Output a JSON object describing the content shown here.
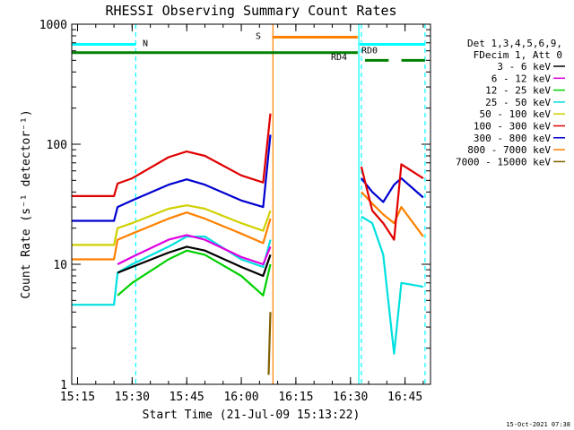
{
  "chart_data": {
    "type": "line",
    "title": "RHESSI Observing Summary Count Rates",
    "xlabel": "Start Time (21-Jul-09 15:13:22)",
    "ylabel": "Count Rate (s⁻¹ detector⁻¹)",
    "yscale": "log",
    "ylim": [
      1,
      1000
    ],
    "xlim_minutes": [
      913.4,
      1012
    ],
    "x_tick_labels": [
      "15:15",
      "15:30",
      "15:45",
      "16:00",
      "16:15",
      "16:30",
      "16:45"
    ],
    "y_tick_labels": [
      "1",
      "10",
      "100",
      "1000"
    ],
    "legend_header": [
      "Det 1,3,4,5,6,9,",
      "FDecim 1, Att 0"
    ],
    "legend_position": "right",
    "footer": "15-Oct-2021 07:38",
    "series": [
      {
        "name": "3 - 6 keV",
        "color": "#000000",
        "seg1": [
          [
            926,
            8.5
          ],
          [
            930,
            9.5
          ],
          [
            940,
            12.5
          ],
          [
            945,
            14
          ],
          [
            950,
            13
          ],
          [
            960,
            9.5
          ],
          [
            966,
            8
          ],
          [
            968,
            12
          ]
        ],
        "seg2": []
      },
      {
        "name": "6 - 12 keV",
        "color": "#e000e0",
        "seg1": [
          [
            926,
            10
          ],
          [
            930,
            11.5
          ],
          [
            940,
            16
          ],
          [
            945,
            17.5
          ],
          [
            950,
            16
          ],
          [
            960,
            11.5
          ],
          [
            966,
            10
          ],
          [
            968,
            14
          ]
        ],
        "seg2": []
      },
      {
        "name": "12 - 25 keV",
        "color": "#00d000",
        "seg1": [
          [
            926,
            5.5
          ],
          [
            930,
            7
          ],
          [
            940,
            11
          ],
          [
            945,
            13
          ],
          [
            950,
            12
          ],
          [
            960,
            8
          ],
          [
            966,
            5.5
          ],
          [
            968,
            10
          ]
        ],
        "seg2": []
      },
      {
        "name": "25 - 50 keV",
        "color": "#00e0e0",
        "seg1": [
          [
            913.5,
            4.6
          ],
          [
            925,
            4.6
          ],
          [
            926,
            8.5
          ],
          [
            930,
            10
          ],
          [
            940,
            14
          ],
          [
            945,
            17
          ],
          [
            950,
            17
          ],
          [
            960,
            11
          ],
          [
            966,
            9.5
          ],
          [
            968,
            16
          ]
        ],
        "seg2": [
          [
            993,
            25
          ],
          [
            996,
            22
          ],
          [
            999,
            12
          ],
          [
            1002,
            1.8
          ],
          [
            1004,
            7
          ],
          [
            1010,
            6.5
          ]
        ]
      },
      {
        "name": "50 - 100 keV",
        "color": "#d0d000",
        "seg1": [
          [
            913.5,
            14.5
          ],
          [
            925,
            14.5
          ],
          [
            926,
            20
          ],
          [
            930,
            22
          ],
          [
            940,
            29
          ],
          [
            945,
            31
          ],
          [
            950,
            29
          ],
          [
            960,
            22
          ],
          [
            966,
            19
          ],
          [
            968,
            28
          ]
        ],
        "seg2": []
      },
      {
        "name": "100 - 300 keV",
        "color": "#e00000",
        "seg1": [
          [
            913.5,
            37
          ],
          [
            925,
            37
          ],
          [
            926,
            47
          ],
          [
            930,
            52
          ],
          [
            940,
            78
          ],
          [
            945,
            87
          ],
          [
            950,
            80
          ],
          [
            960,
            55
          ],
          [
            966,
            48
          ],
          [
            968,
            180
          ]
        ],
        "seg2": [
          [
            993,
            65
          ],
          [
            996,
            28
          ],
          [
            999,
            22
          ],
          [
            1002,
            16
          ],
          [
            1004,
            68
          ],
          [
            1010,
            52
          ]
        ]
      },
      {
        "name": "300 - 800 keV",
        "color": "#0000d0",
        "seg1": [
          [
            913.5,
            23
          ],
          [
            925,
            23
          ],
          [
            926,
            30
          ],
          [
            930,
            34
          ],
          [
            940,
            46
          ],
          [
            945,
            51
          ],
          [
            950,
            46
          ],
          [
            960,
            34
          ],
          [
            966,
            30
          ],
          [
            968,
            120
          ]
        ],
        "seg2": [
          [
            993,
            52
          ],
          [
            996,
            40
          ],
          [
            999,
            33
          ],
          [
            1002,
            46
          ],
          [
            1004,
            52
          ],
          [
            1010,
            36
          ]
        ]
      },
      {
        "name": "800 - 7000 keV",
        "color": "#ff8000",
        "seg1": [
          [
            913.5,
            11
          ],
          [
            925,
            11
          ],
          [
            926,
            16
          ],
          [
            930,
            18
          ],
          [
            940,
            24
          ],
          [
            945,
            27
          ],
          [
            950,
            24
          ],
          [
            960,
            18
          ],
          [
            966,
            15
          ],
          [
            968,
            24
          ]
        ],
        "seg2": [
          [
            993,
            40
          ],
          [
            996,
            32
          ],
          [
            999,
            26
          ],
          [
            1002,
            22
          ],
          [
            1004,
            30
          ],
          [
            1010,
            17
          ]
        ]
      },
      {
        "name": "7000 - 15000 keV",
        "color": "#806000",
        "seg1": [
          [
            967.5,
            1.2
          ],
          [
            968,
            4
          ]
        ],
        "seg2": []
      }
    ],
    "flag_bars": [
      {
        "label": "N",
        "color": "#00ffff",
        "segments": [
          [
            913.5,
            931
          ],
          [
            992.5,
            1010.5
          ]
        ],
        "level": 680
      },
      {
        "label": "S",
        "color": "#ff8000",
        "segments": [
          [
            968.5,
            992
          ]
        ],
        "level": 780
      },
      {
        "label": "RD4",
        "color": "#008000",
        "segments": [
          [
            913.5,
            992
          ]
        ],
        "level": 580
      },
      {
        "label": "RD0",
        "color": "#008000",
        "segments": [
          [
            994,
            1000.5
          ],
          [
            1004,
            1010.5
          ]
        ],
        "level": 500
      }
    ],
    "vlines": [
      {
        "x": 931,
        "color": "#00ffff",
        "style": "dashed"
      },
      {
        "x": 968.7,
        "color": "#ff8000",
        "style": "solid"
      },
      {
        "x": 992.3,
        "color": "#00ffff",
        "style": "solid"
      },
      {
        "x": 993.0,
        "color": "#00ffff",
        "style": "dashed"
      },
      {
        "x": 1010.5,
        "color": "#00ffff",
        "style": "dashed"
      }
    ]
  }
}
